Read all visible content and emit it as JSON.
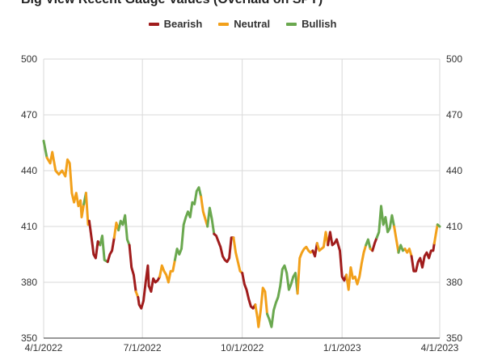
{
  "chart_data": {
    "type": "line",
    "title": "Big View Recent Gauge Values (Overlaid on SPY)",
    "xlabel": "",
    "ylabel": "",
    "ylim": [
      350,
      500
    ],
    "xlim": [
      "2022-04-01",
      "2023-04-01"
    ],
    "yticks": [
      "350",
      "380",
      "410",
      "440",
      "470",
      "500"
    ],
    "xticks": [
      {
        "date": "2022-04-01",
        "label": "4/1/2022"
      },
      {
        "date": "2022-07-01",
        "label": "7/1/2022"
      },
      {
        "date": "2022-10-01",
        "label": "10/1/2022"
      },
      {
        "date": "2023-01-01",
        "label": "1/1/2023"
      },
      {
        "date": "2023-04-01",
        "label": "4/1/2023"
      }
    ],
    "grid": true,
    "legend_position": "top-center",
    "legend": [
      {
        "name": "Bearish",
        "color": "#a01c1c"
      },
      {
        "name": "Neutral",
        "color": "#f2a01a"
      },
      {
        "name": "Bullish",
        "color": "#6aa84f"
      }
    ],
    "colors": {
      "bearish": "#a01c1c",
      "neutral": "#f2a01a",
      "bullish": "#6aa84f"
    },
    "segments": [
      {
        "state": "bullish",
        "points": [
          [
            "2022-04-01",
            456
          ],
          [
            "2022-04-04",
            447
          ]
        ]
      },
      {
        "state": "neutral",
        "points": [
          [
            "2022-04-04",
            447
          ],
          [
            "2022-04-07",
            444
          ],
          [
            "2022-04-09",
            450
          ],
          [
            "2022-04-12",
            440
          ],
          [
            "2022-04-15",
            438
          ],
          [
            "2022-04-18",
            440
          ],
          [
            "2022-04-21",
            437
          ],
          [
            "2022-04-23",
            446
          ],
          [
            "2022-04-25",
            444
          ],
          [
            "2022-04-27",
            428
          ],
          [
            "2022-04-29",
            423
          ],
          [
            "2022-05-01",
            428
          ],
          [
            "2022-05-03",
            421
          ],
          [
            "2022-05-05",
            424
          ],
          [
            "2022-05-06",
            415
          ],
          [
            "2022-05-08",
            422
          ]
        ]
      },
      {
        "state": "bullish",
        "points": [
          [
            "2022-05-08",
            422
          ],
          [
            "2022-05-10",
            428
          ]
        ]
      },
      {
        "state": "neutral",
        "points": [
          [
            "2022-05-10",
            428
          ],
          [
            "2022-05-12",
            411
          ],
          [
            "2022-05-13",
            413
          ]
        ]
      },
      {
        "state": "bearish",
        "points": [
          [
            "2022-05-13",
            413
          ],
          [
            "2022-05-16",
            400
          ],
          [
            "2022-05-17",
            395
          ],
          [
            "2022-05-19",
            393
          ],
          [
            "2022-05-21",
            402
          ],
          [
            "2022-05-23",
            400
          ]
        ]
      },
      {
        "state": "bullish",
        "points": [
          [
            "2022-05-23",
            400
          ],
          [
            "2022-05-25",
            405
          ],
          [
            "2022-05-27",
            392
          ],
          [
            "2022-05-30",
            391
          ]
        ]
      },
      {
        "state": "bearish",
        "points": [
          [
            "2022-05-30",
            391
          ],
          [
            "2022-06-01",
            395
          ],
          [
            "2022-06-03",
            397
          ],
          [
            "2022-06-05",
            404
          ]
        ]
      },
      {
        "state": "neutral",
        "points": [
          [
            "2022-06-05",
            404
          ],
          [
            "2022-06-07",
            412
          ],
          [
            "2022-06-09",
            408
          ]
        ]
      },
      {
        "state": "bullish",
        "points": [
          [
            "2022-06-09",
            408
          ],
          [
            "2022-06-11",
            413
          ],
          [
            "2022-06-13",
            411
          ],
          [
            "2022-06-15",
            416
          ],
          [
            "2022-06-17",
            403
          ],
          [
            "2022-06-19",
            400
          ]
        ]
      },
      {
        "state": "bearish",
        "points": [
          [
            "2022-06-19",
            400
          ],
          [
            "2022-06-21",
            388
          ],
          [
            "2022-06-23",
            384
          ],
          [
            "2022-06-25",
            375
          ]
        ]
      },
      {
        "state": "neutral",
        "points": [
          [
            "2022-06-25",
            375
          ],
          [
            "2022-06-27",
            372
          ]
        ]
      },
      {
        "state": "bearish",
        "points": [
          [
            "2022-06-27",
            372
          ],
          [
            "2022-06-28",
            368
          ],
          [
            "2022-06-30",
            366
          ],
          [
            "2022-07-02",
            370
          ],
          [
            "2022-07-04",
            380
          ],
          [
            "2022-07-06",
            389
          ],
          [
            "2022-07-07",
            378
          ]
        ]
      },
      {
        "state": "bearish",
        "points": [
          [
            "2022-07-07",
            378
          ],
          [
            "2022-07-09",
            375
          ],
          [
            "2022-07-11",
            382
          ],
          [
            "2022-07-13",
            380
          ],
          [
            "2022-07-15",
            381
          ],
          [
            "2022-07-17",
            383
          ]
        ]
      },
      {
        "state": "neutral",
        "points": [
          [
            "2022-07-17",
            383
          ],
          [
            "2022-07-19",
            389
          ],
          [
            "2022-07-21",
            386
          ],
          [
            "2022-07-23",
            384
          ],
          [
            "2022-07-25",
            380
          ],
          [
            "2022-07-27",
            386
          ],
          [
            "2022-07-29",
            386
          ],
          [
            "2022-07-31",
            392
          ]
        ]
      },
      {
        "state": "bullish",
        "points": [
          [
            "2022-07-31",
            392
          ],
          [
            "2022-08-02",
            398
          ],
          [
            "2022-08-04",
            395
          ],
          [
            "2022-08-06",
            398
          ],
          [
            "2022-08-08",
            411
          ],
          [
            "2022-08-10",
            415
          ],
          [
            "2022-08-12",
            418
          ],
          [
            "2022-08-14",
            415
          ],
          [
            "2022-08-16",
            423
          ],
          [
            "2022-08-18",
            422
          ],
          [
            "2022-08-20",
            429
          ],
          [
            "2022-08-22",
            431
          ],
          [
            "2022-08-24",
            426
          ]
        ]
      },
      {
        "state": "neutral",
        "points": [
          [
            "2022-08-24",
            426
          ],
          [
            "2022-08-26",
            418
          ],
          [
            "2022-08-28",
            414
          ],
          [
            "2022-08-30",
            410
          ]
        ]
      },
      {
        "state": "bullish",
        "points": [
          [
            "2022-08-30",
            410
          ],
          [
            "2022-09-01",
            420
          ],
          [
            "2022-09-03",
            414
          ],
          [
            "2022-09-05",
            406
          ]
        ]
      },
      {
        "state": "bearish",
        "points": [
          [
            "2022-09-05",
            406
          ],
          [
            "2022-09-07",
            405
          ],
          [
            "2022-09-09",
            402
          ],
          [
            "2022-09-11",
            399
          ],
          [
            "2022-09-13",
            394
          ],
          [
            "2022-09-15",
            392
          ],
          [
            "2022-09-17",
            391
          ],
          [
            "2022-09-19",
            393
          ],
          [
            "2022-09-21",
            404
          ],
          [
            "2022-09-23",
            404
          ]
        ]
      },
      {
        "state": "neutral",
        "points": [
          [
            "2022-09-23",
            404
          ],
          [
            "2022-09-25",
            396
          ],
          [
            "2022-09-27",
            391
          ],
          [
            "2022-09-29",
            386
          ],
          [
            "2022-10-01",
            385
          ]
        ]
      },
      {
        "state": "bearish",
        "points": [
          [
            "2022-10-01",
            385
          ],
          [
            "2022-10-03",
            379
          ],
          [
            "2022-10-05",
            376
          ],
          [
            "2022-10-07",
            371
          ],
          [
            "2022-10-09",
            367
          ],
          [
            "2022-10-11",
            366
          ],
          [
            "2022-10-13",
            368
          ]
        ]
      },
      {
        "state": "neutral",
        "points": [
          [
            "2022-10-13",
            368
          ],
          [
            "2022-10-15",
            361
          ],
          [
            "2022-10-16",
            356
          ],
          [
            "2022-10-18",
            365
          ],
          [
            "2022-10-20",
            377
          ],
          [
            "2022-10-22",
            375
          ],
          [
            "2022-10-24",
            363
          ]
        ]
      },
      {
        "state": "bullish",
        "points": [
          [
            "2022-10-24",
            363
          ],
          [
            "2022-10-26",
            360
          ],
          [
            "2022-10-28",
            356
          ],
          [
            "2022-10-30",
            365
          ],
          [
            "2022-11-01",
            369
          ],
          [
            "2022-11-03",
            372
          ],
          [
            "2022-11-05",
            378
          ],
          [
            "2022-11-07",
            387
          ],
          [
            "2022-11-09",
            389
          ],
          [
            "2022-11-11",
            385
          ],
          [
            "2022-11-13",
            376
          ],
          [
            "2022-11-15",
            379
          ],
          [
            "2022-11-17",
            383
          ],
          [
            "2022-11-19",
            385
          ],
          [
            "2022-11-21",
            374
          ]
        ]
      },
      {
        "state": "neutral",
        "points": [
          [
            "2022-11-21",
            374
          ],
          [
            "2022-11-23",
            393
          ],
          [
            "2022-11-25",
            396
          ],
          [
            "2022-11-27",
            398
          ],
          [
            "2022-11-29",
            399
          ],
          [
            "2022-12-01",
            397
          ],
          [
            "2022-12-03",
            396
          ],
          [
            "2022-12-05",
            397
          ]
        ]
      },
      {
        "state": "bearish",
        "points": [
          [
            "2022-12-05",
            397
          ],
          [
            "2022-12-07",
            394
          ],
          [
            "2022-12-09",
            401
          ]
        ]
      },
      {
        "state": "neutral",
        "points": [
          [
            "2022-12-09",
            401
          ],
          [
            "2022-12-11",
            397
          ],
          [
            "2022-12-13",
            398
          ],
          [
            "2022-12-15",
            399
          ],
          [
            "2022-12-17",
            407
          ],
          [
            "2022-12-19",
            400
          ]
        ]
      },
      {
        "state": "bearish",
        "points": [
          [
            "2022-12-19",
            400
          ],
          [
            "2022-12-21",
            407
          ],
          [
            "2022-12-23",
            400
          ],
          [
            "2022-12-25",
            401
          ],
          [
            "2022-12-27",
            403
          ]
        ]
      },
      {
        "state": "bearish",
        "points": [
          [
            "2022-12-27",
            403
          ],
          [
            "2022-12-30",
            397
          ],
          [
            "2023-01-01",
            383
          ],
          [
            "2023-01-03",
            381
          ],
          [
            "2023-01-05",
            384
          ]
        ]
      },
      {
        "state": "neutral",
        "points": [
          [
            "2023-01-05",
            384
          ],
          [
            "2023-01-07",
            376
          ],
          [
            "2023-01-09",
            388
          ],
          [
            "2023-01-11",
            382
          ],
          [
            "2023-01-13",
            383
          ],
          [
            "2023-01-15",
            379
          ],
          [
            "2023-01-17",
            383
          ],
          [
            "2023-01-19",
            390
          ],
          [
            "2023-01-21",
            396
          ],
          [
            "2023-01-23",
            400
          ]
        ]
      },
      {
        "state": "bullish",
        "points": [
          [
            "2023-01-23",
            400
          ],
          [
            "2023-01-25",
            403
          ],
          [
            "2023-01-27",
            398
          ]
        ]
      },
      {
        "state": "neutral",
        "points": [
          [
            "2023-01-27",
            398
          ],
          [
            "2023-01-29",
            397
          ]
        ]
      },
      {
        "state": "bearish",
        "points": [
          [
            "2023-01-29",
            397
          ],
          [
            "2023-01-31",
            401
          ],
          [
            "2023-02-02",
            404
          ]
        ]
      },
      {
        "state": "bullish",
        "points": [
          [
            "2023-02-02",
            404
          ],
          [
            "2023-02-04",
            407
          ],
          [
            "2023-02-06",
            421
          ],
          [
            "2023-02-08",
            411
          ],
          [
            "2023-02-10",
            415
          ],
          [
            "2023-02-12",
            407
          ],
          [
            "2023-02-14",
            409
          ],
          [
            "2023-02-16",
            416
          ],
          [
            "2023-02-18",
            410
          ]
        ]
      },
      {
        "state": "neutral",
        "points": [
          [
            "2023-02-18",
            410
          ],
          [
            "2023-02-20",
            403
          ],
          [
            "2023-02-22",
            396
          ]
        ]
      },
      {
        "state": "bullish",
        "points": [
          [
            "2023-02-22",
            396
          ],
          [
            "2023-02-24",
            400
          ],
          [
            "2023-02-26",
            397
          ],
          [
            "2023-02-28",
            398
          ]
        ]
      },
      {
        "state": "neutral",
        "points": [
          [
            "2023-02-28",
            398
          ],
          [
            "2023-03-02",
            396
          ],
          [
            "2023-03-04",
            398
          ],
          [
            "2023-03-06",
            394
          ]
        ]
      },
      {
        "state": "bearish",
        "points": [
          [
            "2023-03-06",
            394
          ],
          [
            "2023-03-08",
            386
          ],
          [
            "2023-03-10",
            386
          ],
          [
            "2023-03-12",
            391
          ],
          [
            "2023-03-14",
            393
          ],
          [
            "2023-03-16",
            388
          ],
          [
            "2023-03-18",
            394
          ],
          [
            "2023-03-20",
            396
          ],
          [
            "2023-03-22",
            393
          ],
          [
            "2023-03-24",
            397
          ],
          [
            "2023-03-26",
            397
          ],
          [
            "2023-03-27",
            401
          ]
        ]
      },
      {
        "state": "neutral",
        "points": [
          [
            "2023-03-27",
            401
          ],
          [
            "2023-03-29",
            408
          ],
          [
            "2023-03-30",
            411
          ]
        ]
      },
      {
        "state": "bullish",
        "points": [
          [
            "2023-03-30",
            411
          ],
          [
            "2023-04-01",
            410
          ]
        ]
      }
    ]
  }
}
